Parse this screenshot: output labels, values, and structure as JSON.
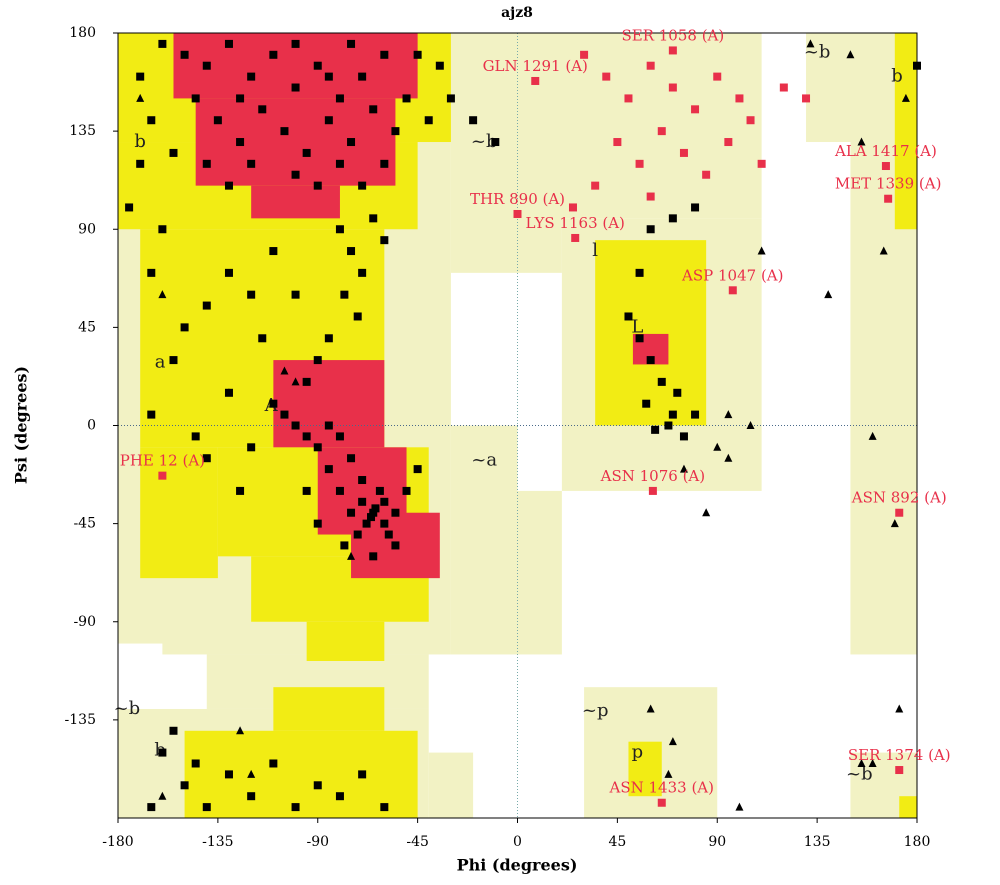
{
  "chart_data": {
    "type": "scatter",
    "title": "ajz8",
    "x_label": "Phi (degrees)",
    "y_label": "Psi (degrees)",
    "xlim": [
      -180,
      180
    ],
    "ylim": [
      -180,
      180
    ],
    "xticks": [
      -180,
      -135,
      -90,
      -45,
      0,
      45,
      90,
      135,
      180
    ],
    "yticks": [
      -135,
      -90,
      -45,
      0,
      45,
      90,
      135,
      180
    ],
    "region_labels": [
      "A",
      "a",
      "b",
      "~b",
      "l",
      "L",
      "~a",
      "~b",
      "b",
      "~p",
      "p",
      "~b",
      "b",
      "~b"
    ],
    "series": [
      {
        "marker": "square",
        "color": "#000000",
        "x": [
          -150,
          -140,
          -130,
          -120,
          -110,
          -100,
          -90,
          -80,
          -70,
          -60,
          -145,
          -135,
          -125,
          -115,
          -105,
          -95,
          -85,
          -75,
          -65,
          -55,
          -160,
          -170,
          -165,
          -155,
          -140,
          -130,
          -120,
          -100,
          -90,
          -80,
          -70,
          -60,
          -50,
          -45,
          -35,
          -40,
          -100,
          -75,
          -125,
          -85,
          -80,
          -75,
          -70,
          -78,
          -72,
          -85,
          -90,
          -95,
          -65,
          -60,
          -110,
          -120,
          -130,
          -140,
          -150,
          -160,
          -100,
          -115,
          -65,
          -60,
          -70,
          -62,
          -58,
          -68,
          -75,
          -80,
          -55,
          -72,
          -64,
          -66,
          -60,
          -70,
          -85,
          -90,
          -95,
          -100,
          -105,
          -110,
          -80,
          -75,
          -85,
          -50,
          -45,
          -55,
          -65,
          -78,
          -120,
          -130,
          -140,
          -125,
          -90,
          -95,
          -170,
          -175,
          -165,
          -155,
          -165,
          -145,
          55,
          60,
          65,
          58,
          70,
          75,
          68,
          80,
          62,
          72,
          50,
          55,
          60,
          70,
          80,
          -160,
          -150,
          -140,
          -130,
          -120,
          -110,
          -100,
          -90,
          -80,
          -70,
          -60,
          -155,
          -145,
          -165,
          -10,
          -20,
          -30,
          180
        ],
        "y": [
          170,
          165,
          175,
          160,
          170,
          155,
          165,
          150,
          160,
          170,
          150,
          140,
          130,
          145,
          135,
          125,
          140,
          130,
          145,
          135,
          175,
          160,
          140,
          125,
          120,
          110,
          120,
          115,
          110,
          120,
          110,
          120,
          150,
          170,
          165,
          140,
          175,
          175,
          150,
          160,
          90,
          80,
          70,
          60,
          50,
          40,
          30,
          20,
          95,
          85,
          80,
          60,
          70,
          55,
          45,
          90,
          60,
          40,
          -40,
          -45,
          -35,
          -30,
          -50,
          -45,
          -40,
          -30,
          -40,
          -50,
          -38,
          -42,
          -35,
          -25,
          -20,
          -10,
          -5,
          0,
          5,
          10,
          -5,
          -15,
          0,
          -30,
          -20,
          -55,
          -60,
          -55,
          -10,
          15,
          -15,
          -30,
          -45,
          -30,
          120,
          100,
          70,
          30,
          5,
          -5,
          40,
          30,
          20,
          10,
          5,
          -5,
          0,
          5,
          -2,
          15,
          50,
          70,
          90,
          95,
          100,
          -150,
          -165,
          -175,
          -160,
          -170,
          -155,
          -175,
          -165,
          -170,
          -160,
          -175,
          -140,
          -155,
          -175,
          130,
          140,
          150,
          165
        ]
      },
      {
        "marker": "triangle",
        "color": "#000000",
        "x": [
          -170,
          -160,
          -125,
          -120,
          -100,
          -105,
          -130,
          -75,
          -160,
          75,
          90,
          95,
          105,
          132,
          150,
          155,
          175,
          160,
          165,
          170,
          172,
          155,
          160,
          140,
          110,
          95,
          85,
          60,
          70,
          68,
          100
        ],
        "y": [
          150,
          -170,
          -140,
          -160,
          20,
          25,
          15,
          -60,
          60,
          -20,
          -10,
          5,
          0,
          175,
          170,
          130,
          150,
          -5,
          80,
          -45,
          -130,
          -155,
          -155,
          60,
          80,
          -15,
          -40,
          -130,
          -145,
          -160,
          -175
        ]
      },
      {
        "marker": "square",
        "color": "#e8304a",
        "x": [
          30,
          40,
          50,
          60,
          70,
          80,
          90,
          100,
          45,
          55,
          65,
          75,
          85,
          95,
          105,
          35,
          25,
          60,
          110,
          120,
          130
        ],
        "y": [
          170,
          160,
          150,
          165,
          155,
          145,
          160,
          150,
          130,
          120,
          135,
          125,
          115,
          130,
          140,
          110,
          100,
          105,
          120,
          155,
          150
        ]
      },
      {
        "marker": "square",
        "color": "#e8304a",
        "x": [
          -160,
          61,
          172,
          172,
          65,
          167,
          166,
          26,
          0,
          97,
          8,
          70
        ],
        "y": [
          -23,
          -30,
          -40,
          -158,
          -173,
          104,
          119,
          86,
          97,
          62,
          158,
          172
        ],
        "labels": [
          "PHE 12 (A)",
          "ASN 1076 (A)",
          "ASN 892 (A)",
          "SER 1374 (A)",
          "ASN 1433 (A)",
          "MET 1339 (A)",
          "ALA 1417 (A)",
          "LYS 1163 (A)",
          "THR 890 (A)",
          "ASP 1047 (A)",
          "GLN 1291 (A)",
          "SER 1058 (A)"
        ]
      }
    ]
  }
}
